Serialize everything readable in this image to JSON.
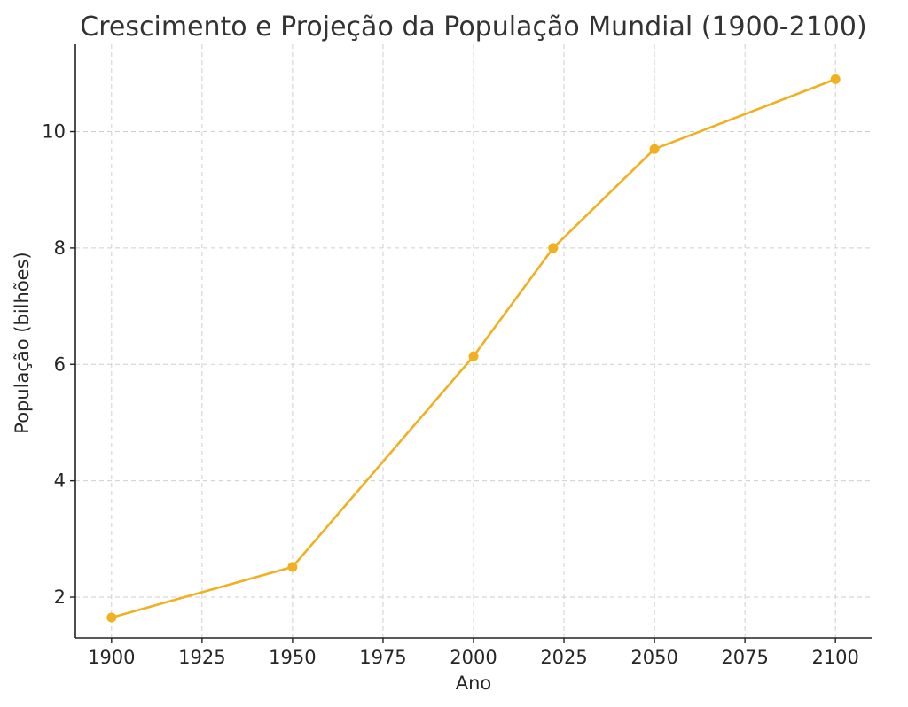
{
  "chart_data": {
    "type": "line",
    "title": "Crescimento e Projeção da População Mundial (1900-2100)",
    "xlabel": "Ano",
    "ylabel": "População (bilhões)",
    "x_ticks": [
      1900,
      1925,
      1950,
      1975,
      2000,
      2025,
      2050,
      2075,
      2100
    ],
    "y_ticks": [
      2,
      4,
      6,
      8,
      10
    ],
    "xlim": [
      1890,
      2110
    ],
    "ylim": [
      1.3,
      11.5
    ],
    "grid": true,
    "color": "#f0b020",
    "series": [
      {
        "x": [
          1900,
          1950,
          2000,
          2022,
          2050,
          2100
        ],
        "values": [
          1.65,
          2.52,
          6.14,
          8.0,
          9.7,
          10.9
        ]
      }
    ]
  }
}
